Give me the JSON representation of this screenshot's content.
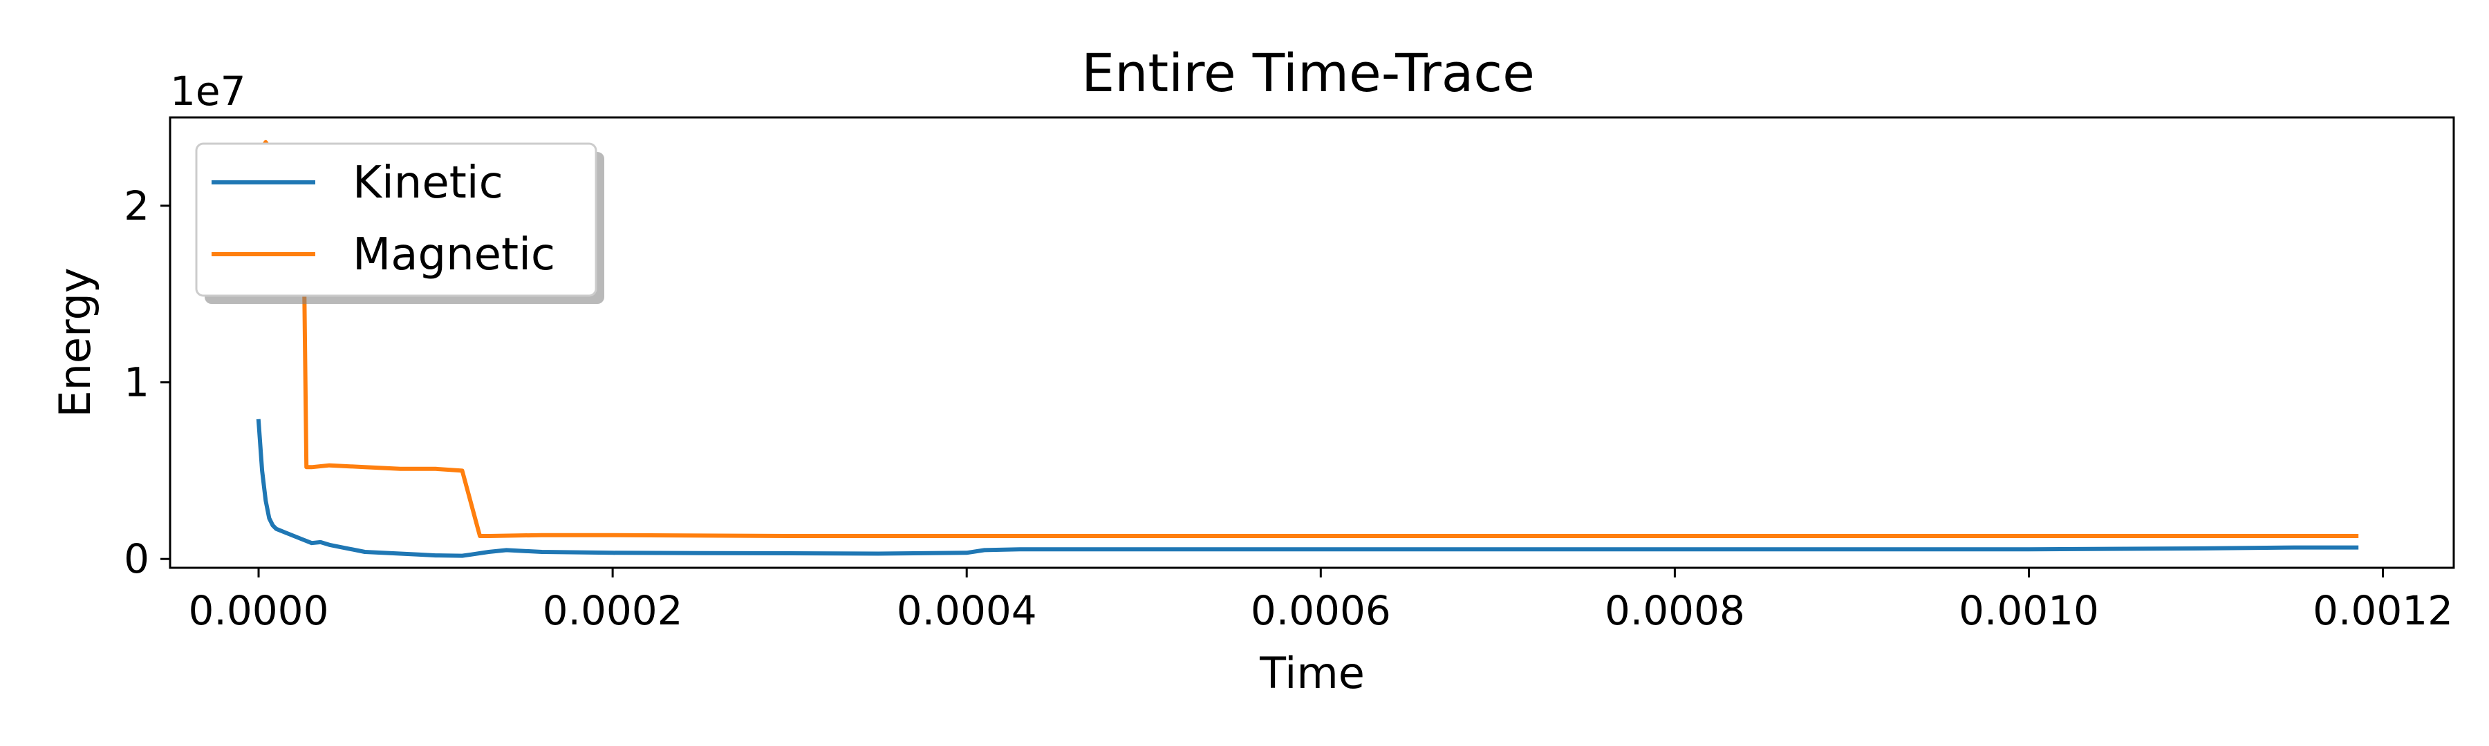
{
  "chart_data": {
    "type": "line",
    "title": "Entire Time-Trace",
    "xlabel": "Time",
    "ylabel": "Energy",
    "y_offset_label": "1e7",
    "y_scale": 10000000,
    "xlim": [
      -5e-05,
      0.00124
    ],
    "ylim": [
      -0.05,
      2.5
    ],
    "x_ticks": [
      0.0,
      0.0002,
      0.0004,
      0.0006,
      0.0008,
      0.001,
      0.0012
    ],
    "x_tick_labels": [
      "0.0000",
      "0.0002",
      "0.0004",
      "0.0006",
      "0.0008",
      "0.0010",
      "0.0012"
    ],
    "y_ticks": [
      0,
      1,
      2
    ],
    "y_tick_labels": [
      "0",
      "1",
      "2"
    ],
    "grid": false,
    "legend_position": "upper-left",
    "series": [
      {
        "name": "Kinetic",
        "color": "#1f77b4",
        "x": [
          0.0,
          2e-06,
          4e-06,
          6e-06,
          8e-06,
          1e-05,
          1.5e-05,
          2e-05,
          2.5e-05,
          3e-05,
          3.5e-05,
          4e-05,
          5e-05,
          6e-05,
          7e-05,
          8e-05,
          9e-05,
          0.0001,
          0.000115,
          0.00012,
          0.00013,
          0.00014,
          0.00016,
          0.0002,
          0.00025,
          0.0003,
          0.00035,
          0.0004,
          0.00041,
          0.00043,
          0.0005,
          0.0006,
          0.0007,
          0.0008,
          0.0009,
          0.001,
          0.0011,
          0.00115,
          0.001185
        ],
        "values": [
          0.78,
          0.5,
          0.33,
          0.23,
          0.19,
          0.17,
          0.15,
          0.13,
          0.11,
          0.09,
          0.095,
          0.08,
          0.06,
          0.04,
          0.035,
          0.03,
          0.025,
          0.02,
          0.018,
          0.025,
          0.04,
          0.05,
          0.04,
          0.035,
          0.033,
          0.032,
          0.03,
          0.035,
          0.05,
          0.055,
          0.055,
          0.055,
          0.055,
          0.055,
          0.055,
          0.055,
          0.06,
          0.065,
          0.065
        ]
      },
      {
        "name": "Magnetic",
        "color": "#ff7f0e",
        "x": [
          2e-06,
          4e-06,
          6e-06,
          8e-06,
          1e-05,
          1.5e-05,
          2.5e-05,
          2.7e-05,
          3e-05,
          4e-05,
          6e-05,
          8e-05,
          0.0001,
          0.000115,
          0.000125,
          0.00013,
          0.00016,
          0.0002,
          0.0003,
          0.0004,
          0.0005,
          0.0006,
          0.0007,
          0.0008,
          0.0009,
          0.001,
          0.0011,
          0.001185
        ],
        "values": [
          2.33,
          2.36,
          2.33,
          2.31,
          2.3,
          2.26,
          2.24,
          0.52,
          0.52,
          0.53,
          0.52,
          0.51,
          0.51,
          0.5,
          0.13,
          0.13,
          0.135,
          0.135,
          0.13,
          0.13,
          0.13,
          0.13,
          0.13,
          0.13,
          0.13,
          0.13,
          0.13,
          0.13
        ]
      }
    ]
  }
}
